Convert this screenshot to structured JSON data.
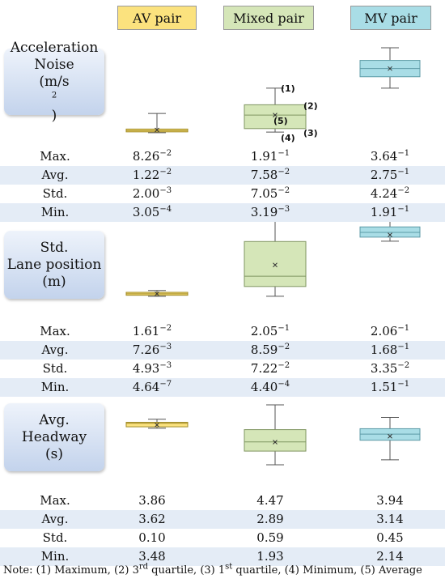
{
  "columns": [
    {
      "label": "AV pair",
      "color": "#fbe27e"
    },
    {
      "label": "Mixed pair",
      "color": "#d5e6b8"
    },
    {
      "label": "MV pair",
      "color": "#a9dde6"
    }
  ],
  "metrics": [
    {
      "lines": [
        "Acceleration",
        "Noise",
        "(m/s",
        ")"
      ],
      "sup": "2"
    },
    {
      "lines": [
        "Std.",
        "Lane position",
        "(m)"
      ]
    },
    {
      "lines": [
        "Avg.",
        "Headway",
        "(s)"
      ]
    }
  ],
  "stats_rows": [
    "Max.",
    "Avg.",
    "Std.",
    "Min."
  ],
  "tables": [
    [
      [
        {
          "m": "8.26",
          "e": "−2"
        },
        {
          "m": "1.91",
          "e": "−1"
        },
        {
          "m": "3.64",
          "e": "−1"
        }
      ],
      [
        {
          "m": "1.22",
          "e": "−2"
        },
        {
          "m": "7.58",
          "e": "−2"
        },
        {
          "m": "2.75",
          "e": "−1"
        }
      ],
      [
        {
          "m": "2.00",
          "e": "−3"
        },
        {
          "m": "7.05",
          "e": "−2"
        },
        {
          "m": "4.24",
          "e": "−2"
        }
      ],
      [
        {
          "m": "3.05",
          "e": "−4"
        },
        {
          "m": "3.19",
          "e": "−3"
        },
        {
          "m": "1.91",
          "e": "−1"
        }
      ]
    ],
    [
      [
        {
          "m": "1.61",
          "e": "−2"
        },
        {
          "m": "2.05",
          "e": "−1"
        },
        {
          "m": "2.06",
          "e": "−1"
        }
      ],
      [
        {
          "m": "7.26",
          "e": "−3"
        },
        {
          "m": "8.59",
          "e": "−2"
        },
        {
          "m": "1.68",
          "e": "−1"
        }
      ],
      [
        {
          "m": "4.93",
          "e": "−3"
        },
        {
          "m": "7.22",
          "e": "−2"
        },
        {
          "m": "3.35",
          "e": "−2"
        }
      ],
      [
        {
          "m": "4.64",
          "e": "−7"
        },
        {
          "m": "4.40",
          "e": "−4"
        },
        {
          "m": "1.51",
          "e": "−1"
        }
      ]
    ],
    [
      [
        {
          "m": "3.86"
        },
        {
          "m": "4.47"
        },
        {
          "m": "3.94"
        }
      ],
      [
        {
          "m": "3.62"
        },
        {
          "m": "2.89"
        },
        {
          "m": "3.14"
        }
      ],
      [
        {
          "m": "0.10"
        },
        {
          "m": "0.59"
        },
        {
          "m": "0.45"
        }
      ],
      [
        {
          "m": "3.48"
        },
        {
          "m": "1.93"
        },
        {
          "m": "2.14"
        }
      ]
    ]
  ],
  "callouts": [
    "(1)",
    "(2)",
    "(5)",
    "(3)",
    "(4)"
  ],
  "note": [
    "Note: (1) Maximum, (2) 3",
    "rd",
    " quartile, (3) 1",
    "st",
    " quartile, (4) Minimum, (5) Average"
  ],
  "chart_data": [
    {
      "type": "box",
      "categories": [
        "AV pair",
        "Mixed pair",
        "MV pair"
      ],
      "boxes": [
        {
          "min": 0.0003,
          "q1": 0.004,
          "median": 0.0095,
          "q3": 0.016,
          "max": 0.0826,
          "mean": 0.0122
        },
        {
          "min": 0.0032,
          "q1": 0.018,
          "median": 0.076,
          "q3": 0.12,
          "max": 0.191,
          "mean": 0.0758
        },
        {
          "min": 0.191,
          "q1": 0.24,
          "median": 0.275,
          "q3": 0.31,
          "max": 0.364,
          "mean": 0.275
        }
      ]
    },
    {
      "type": "box",
      "categories": [
        "AV pair",
        "Mixed pair",
        "MV pair"
      ],
      "boxes": [
        {
          "min": 0.0,
          "q1": 0.003,
          "median": 0.007,
          "q3": 0.011,
          "max": 0.0161,
          "mean": 0.00726
        },
        {
          "min": 0.0004,
          "q1": 0.027,
          "median": 0.055,
          "q3": 0.15,
          "max": 0.205,
          "mean": 0.0859
        },
        {
          "min": 0.151,
          "q1": 0.162,
          "median": 0.175,
          "q3": 0.19,
          "max": 0.206,
          "mean": 0.168
        }
      ]
    },
    {
      "type": "box",
      "categories": [
        "AV pair",
        "Mixed pair",
        "MV pair"
      ],
      "boxes": [
        {
          "min": 3.48,
          "q1": 3.54,
          "median": 3.69,
          "q3": 3.73,
          "max": 3.86,
          "mean": 3.62
        },
        {
          "min": 1.93,
          "q1": 2.51,
          "median": 2.9,
          "q3": 3.42,
          "max": 4.47,
          "mean": 2.89
        },
        {
          "min": 2.14,
          "q1": 2.97,
          "median": 3.23,
          "q3": 3.46,
          "max": 3.94,
          "mean": 3.14
        }
      ]
    }
  ]
}
